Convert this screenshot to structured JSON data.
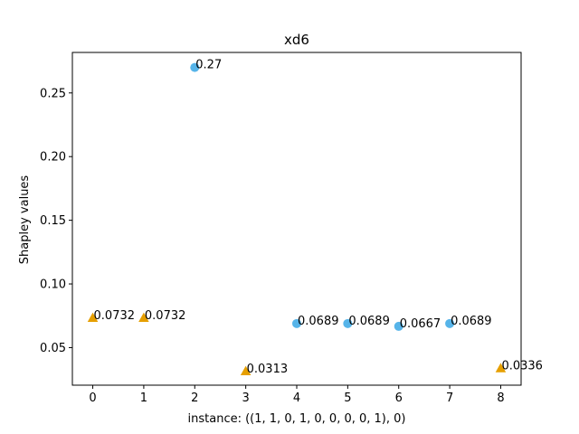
{
  "chart_data": {
    "type": "scatter",
    "title": "xd6",
    "xlabel": "instance: ((1, 1, 0, 1, 0, 0, 0, 0, 1), 0)",
    "ylabel": "Shapley values",
    "xlim": [
      -0.4,
      8.4
    ],
    "ylim": [
      0.0205,
      0.2818
    ],
    "xticks": [
      0,
      1,
      2,
      3,
      4,
      5,
      6,
      7,
      8
    ],
    "yticks": [
      0.05,
      0.1,
      0.15,
      0.2,
      0.25
    ],
    "ytick_labels": [
      "0.05",
      "0.10",
      "0.15",
      "0.20",
      "0.25"
    ],
    "grid": false,
    "series": [
      {
        "marker": "circle",
        "color": "#56B4E9",
        "points": [
          {
            "x": 2,
            "y": 0.27,
            "label": "0.27"
          },
          {
            "x": 4,
            "y": 0.0689,
            "label": "0.0689"
          },
          {
            "x": 5,
            "y": 0.0689,
            "label": "0.0689"
          },
          {
            "x": 6,
            "y": 0.0667,
            "label": "0.0667"
          },
          {
            "x": 7,
            "y": 0.0689,
            "label": "0.0689"
          }
        ]
      },
      {
        "marker": "triangle",
        "color": "#E69F00",
        "points": [
          {
            "x": 0,
            "y": 0.0732,
            "label": "0.0732"
          },
          {
            "x": 1,
            "y": 0.0732,
            "label": "0.0732"
          },
          {
            "x": 3,
            "y": 0.0313,
            "label": "0.0313"
          },
          {
            "x": 8,
            "y": 0.0336,
            "label": "0.0336"
          }
        ]
      }
    ]
  }
}
